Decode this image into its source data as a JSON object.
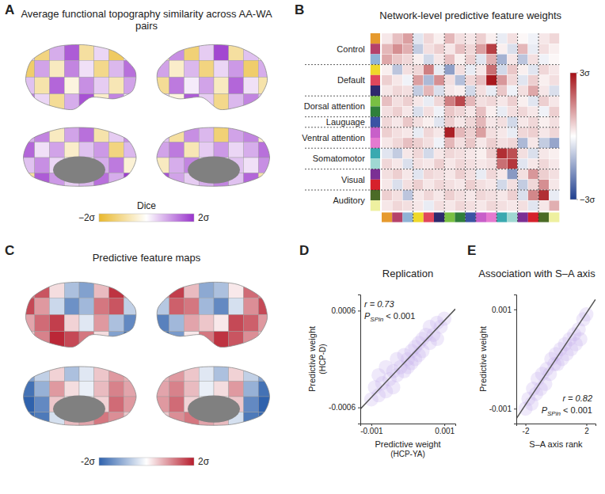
{
  "chart_data": [
    {
      "type": "brain_map",
      "panel": "A",
      "title": "Average functional topography similarity across AA-WA pairs",
      "colorbar": {
        "label": "Dice",
        "range": [
          -2,
          2
        ],
        "colors": [
          "#e9b82c",
          "#ffffff",
          "#9933cc"
        ],
        "ticks": [
          {
            "value": -2,
            "label": "−2σ"
          },
          {
            "value": 2,
            "label": "2σ"
          }
        ]
      },
      "views": [
        [
          [
            0.5,
            -1.2,
            0.8,
            1.6,
            -0.9,
            0.4,
            -1.5,
            0.3
          ],
          [
            -1.4,
            0.9,
            -0.6,
            1.2,
            0.3,
            -1.1,
            0.7,
            1.4
          ],
          [
            0.6,
            -0.8,
            1.5,
            -0.3,
            1.1,
            0.5,
            -0.7,
            0.9
          ],
          [
            1.3,
            0.4,
            -1.0,
            0.8,
            1.7,
            -0.5,
            1.2,
            0.2
          ]
        ],
        [
          [
            -0.7,
            1.1,
            -1.3,
            0.5,
            1.8,
            -0.9,
            0.6,
            -0.4
          ],
          [
            0.9,
            -0.5,
            0.7,
            -1.2,
            0.4,
            1.0,
            -1.4,
            0.8
          ],
          [
            -1.0,
            1.3,
            0.2,
            0.9,
            -0.6,
            1.5,
            0.3,
            -0.8
          ],
          [
            0.4,
            -0.3,
            1.6,
            0.5,
            -1.1,
            0.7,
            1.2,
            0.6
          ]
        ],
        [
          [
            0.8,
            1.2,
            -0.6,
            0.9,
            1.4,
            -0.8,
            0.5,
            1.1
          ],
          [
            1.5,
            0.3,
            0.9,
            -0.5,
            0.6,
            1.0,
            -1.2,
            0.7
          ],
          [
            0.6,
            1.1,
            0.4,
            0.0,
            0.0,
            0.8,
            1.3,
            -0.4
          ],
          [
            -0.9,
            1.6,
            1.0,
            0.5,
            0.7,
            1.4,
            0.8,
            1.9
          ]
        ],
        [
          [
            0.6,
            -0.9,
            1.1,
            0.7,
            -1.3,
            0.9,
            1.2,
            -0.5
          ],
          [
            0.9,
            1.3,
            -0.7,
            0.5,
            1.0,
            0.4,
            0.8,
            1.4
          ],
          [
            -0.6,
            0.8,
            1.2,
            0.0,
            0.0,
            0.6,
            0.3,
            1.1
          ],
          [
            1.7,
            0.9,
            0.5,
            0.8,
            1.2,
            0.6,
            1.5,
            -0.8
          ]
        ]
      ]
    },
    {
      "type": "heatmap",
      "panel": "B",
      "title": "Network-level predictive feature weights",
      "groups": [
        {
          "label": "Control",
          "size": 3
        },
        {
          "label": "Default",
          "size": 3
        },
        {
          "label": "Dorsal attention",
          "size": 2
        },
        {
          "label": "Lauguage",
          "size": 1
        },
        {
          "label": "Ventral attention",
          "size": 2
        },
        {
          "label": "Somatomotor",
          "size": 2
        },
        {
          "label": "Visual",
          "size": 2
        },
        {
          "label": "Auditory",
          "size": 2
        }
      ],
      "colors": [
        "#e69a2e",
        "#b5426a",
        "#8fb3d6",
        "#efd92a",
        "#e0475c",
        "#2e2a6d",
        "#79c043",
        "#2f7f3a",
        "#3a53a4",
        "#c85fc9",
        "#e57ad0",
        "#3aa9b0",
        "#9fd8d2",
        "#7b2f94",
        "#d6212b",
        "#4b6b26",
        "#eef0a0"
      ],
      "colorbar": {
        "range": [
          -3,
          3
        ],
        "colors": [
          "#1f3f8f",
          "#ffffff",
          "#a50f15"
        ],
        "ticks": [
          {
            "value": 3,
            "label": "3σ"
          },
          {
            "value": -3,
            "label": "−3σ"
          }
        ]
      },
      "cells": [
        [
          0.3,
          0.8,
          1.2,
          -0.4,
          0.5,
          0.2,
          0.9,
          0.4,
          0.3,
          0.6,
          0.2,
          -0.3,
          0.4,
          0.1,
          -0.2,
          0.3,
          0.5
        ],
        [
          0.9,
          1.4,
          1.0,
          -0.8,
          0.4,
          0.6,
          0.3,
          0.8,
          0.5,
          1.2,
          2.4,
          0.2,
          -0.5,
          0.9,
          -0.3,
          0.4,
          0.2
        ],
        [
          1.1,
          0.7,
          0.5,
          0.2,
          -0.6,
          0.3,
          0.8,
          0.2,
          0.6,
          -0.4,
          1.0,
          -1.2,
          0.3,
          -0.9,
          0.4,
          -0.2,
          0.1
        ],
        [
          0.2,
          -0.9,
          0.4,
          0.5,
          1.6,
          -0.3,
          -1.5,
          0.4,
          -0.3,
          0.3,
          1.8,
          -0.6,
          0.7,
          0.2,
          -0.4,
          0.5,
          0.3
        ],
        [
          0.6,
          0.3,
          -0.2,
          1.2,
          -1.1,
          1.4,
          0.4,
          -1.0,
          0.5,
          0.8,
          2.9,
          1.3,
          0.5,
          -0.4,
          0.6,
          0.2,
          0.4
        ],
        [
          0.3,
          0.5,
          0.4,
          -0.8,
          0.9,
          -0.5,
          0.3,
          0.2,
          -0.6,
          0.4,
          -0.3,
          0.7,
          -0.2,
          0.4,
          1.1,
          0.3,
          -0.5
        ],
        [
          0.8,
          0.4,
          0.6,
          0.3,
          -0.3,
          0.5,
          1.6,
          2.3,
          0.9,
          0.4,
          0.5,
          0.3,
          0.6,
          0.2,
          -0.4,
          0.6,
          0.3
        ],
        [
          0.4,
          0.6,
          0.3,
          -0.5,
          0.4,
          -0.2,
          0.7,
          0.5,
          0.3,
          0.8,
          0.2,
          -0.3,
          0.4,
          0.5,
          0.3,
          -0.2,
          0.6
        ],
        [
          0.5,
          0.3,
          0.7,
          0.4,
          0.2,
          -0.4,
          0.6,
          0.3,
          0.5,
          0.9,
          0.3,
          0.4,
          -0.6,
          0.3,
          0.5,
          0.2,
          0.4
        ],
        [
          0.6,
          0.4,
          0.3,
          -0.3,
          0.5,
          0.3,
          2.8,
          0.9,
          0.6,
          1.2,
          0.4,
          0.3,
          -0.3,
          0.5,
          0.6,
          0.3,
          0.5
        ],
        [
          0.3,
          0.5,
          0.8,
          0.6,
          0.4,
          -0.2,
          0.9,
          0.4,
          0.7,
          0.3,
          0.6,
          0.4,
          0.5,
          -1.1,
          0.3,
          -0.8,
          -1.4
        ],
        [
          -0.4,
          -0.8,
          0.3,
          0.5,
          -0.6,
          0.3,
          0.5,
          0.4,
          0.3,
          0.2,
          0.6,
          2.6,
          2.2,
          0.4,
          -0.5,
          0.3,
          0.2
        ],
        [
          0.5,
          0.3,
          -0.5,
          0.4,
          0.3,
          0.6,
          0.3,
          0.5,
          0.4,
          0.3,
          0.4,
          1.8,
          2.5,
          -0.4,
          0.3,
          0.5,
          0.3
        ],
        [
          0.4,
          0.6,
          0.3,
          -0.4,
          0.5,
          0.4,
          0.3,
          0.6,
          0.4,
          -0.3,
          0.5,
          0.3,
          -1.6,
          0.4,
          1.3,
          0.6,
          0.4
        ],
        [
          0.3,
          -0.5,
          0.4,
          0.6,
          0.3,
          0.5,
          0.4,
          0.3,
          0.6,
          0.4,
          0.3,
          -0.6,
          0.4,
          -0.8,
          0.5,
          1.4,
          0.3
        ],
        [
          0.6,
          0.4,
          -0.9,
          0.3,
          0.5,
          0.3,
          0.6,
          0.4,
          0.3,
          0.5,
          0.4,
          0.3,
          0.6,
          -0.5,
          1.5,
          2.6,
          -0.3
        ],
        [
          0.3,
          0.5,
          0.4,
          0.3,
          -0.3,
          0.4,
          0.3,
          0.5,
          0.4,
          0.3,
          0.5,
          0.4,
          0.3,
          0.4,
          -0.4,
          0.3,
          1.0
        ]
      ]
    },
    {
      "type": "brain_map",
      "panel": "C",
      "title": "Predictive feature maps",
      "colorbar": {
        "range": [
          -2,
          2
        ],
        "colors": [
          "#2f62ad",
          "#ffffff",
          "#b71c2c"
        ],
        "ticks": [
          {
            "value": -2,
            "label": "-2σ"
          },
          {
            "value": 2,
            "label": "2σ"
          }
        ]
      },
      "views": [
        [
          [
            1.2,
            1.5,
            0.3,
            -0.8,
            -1.2,
            0.6,
            1.8,
            1.0
          ],
          [
            1.6,
            0.9,
            -0.5,
            -1.4,
            -0.9,
            1.2,
            1.5,
            -0.6
          ],
          [
            0.8,
            1.3,
            1.7,
            0.4,
            -0.3,
            0.9,
            -0.8,
            -1.5
          ],
          [
            0.5,
            1.1,
            1.9,
            1.6,
            1.2,
            0.3,
            -1.2,
            -1.9
          ]
        ],
        [
          [
            1.0,
            1.7,
            0.6,
            -1.1,
            -0.8,
            0.2,
            1.3,
            1.1
          ],
          [
            -0.7,
            1.4,
            1.2,
            -0.9,
            -1.5,
            -0.4,
            1.0,
            1.6
          ],
          [
            -1.6,
            -0.9,
            0.8,
            0.5,
            0.2,
            1.6,
            1.4,
            0.9
          ],
          [
            -1.9,
            -1.3,
            0.2,
            1.2,
            1.8,
            1.5,
            1.0,
            0.6
          ]
        ],
        [
          [
            -1.2,
            -0.6,
            0.4,
            -0.8,
            -0.3,
            0.5,
            0.9,
            0.7
          ],
          [
            -1.8,
            -1.0,
            0.9,
            0.3,
            -0.2,
            0.6,
            1.1,
            0.8
          ],
          [
            -2.0,
            -1.5,
            0.5,
            0.0,
            0.0,
            0.4,
            1.3,
            0.9
          ],
          [
            -1.9,
            -1.7,
            -0.4,
            0.6,
            0.8,
            1.2,
            1.0,
            0.5
          ]
        ],
        [
          [
            0.7,
            0.9,
            0.5,
            -0.3,
            -0.8,
            0.4,
            -0.6,
            -1.2
          ],
          [
            0.8,
            1.1,
            0.6,
            -0.2,
            0.3,
            0.9,
            -1.0,
            -1.8
          ],
          [
            0.9,
            1.3,
            0.4,
            0.0,
            0.0,
            0.5,
            -1.5,
            -2.0
          ],
          [
            0.5,
            1.0,
            1.2,
            0.8,
            0.6,
            -0.4,
            -1.7,
            -1.9
          ]
        ]
      ]
    },
    {
      "type": "scatter",
      "panel": "D",
      "title": "Replication",
      "xlabel": [
        "Predictive weight",
        "(HCP-YA)"
      ],
      "ylabel": [
        "Predictive weight",
        "(HCP-D)"
      ],
      "xlim": [
        -0.0013,
        0.0013
      ],
      "ylim": [
        -0.0008,
        0.0008
      ],
      "xticks": [
        -0.001,
        0.001
      ],
      "yticks": [
        0.0006,
        -0.0006
      ],
      "color": "#c4b0ec",
      "marker": "circle",
      "x": [
        -0.001,
        -0.0009,
        -0.0008,
        -0.0008,
        -0.0007,
        -0.0006,
        -0.0006,
        -0.0005,
        -0.0004,
        -0.0004,
        -0.0003,
        -0.0003,
        -0.0002,
        -0.0001,
        -0.0001,
        0.0,
        0.0,
        0.0001,
        0.0001,
        0.0002,
        0.0002,
        0.0003,
        0.0003,
        0.0004,
        0.0004,
        0.0005,
        0.0006,
        0.0006,
        0.0007,
        0.0008,
        0.0008,
        0.0009,
        0.001
      ],
      "y": [
        -0.0005,
        -0.00035,
        -0.00045,
        -0.0002,
        -0.0003,
        -0.0004,
        -0.0001,
        -0.00025,
        -0.00015,
        -0.00035,
        0.0,
        -0.0002,
        -0.0001,
        5e-05,
        -0.00015,
        0.0,
        -0.0001,
        0.0001,
        -5e-05,
        0.00015,
        0.0,
        0.0002,
        5e-05,
        0.00025,
        0.0001,
        0.0003,
        0.0002,
        0.0004,
        0.0003,
        0.00045,
        0.00025,
        0.0004,
        0.0005
      ],
      "fit": {
        "x": [
          -0.0013,
          0.0013
        ],
        "y": [
          -0.00062,
          0.00062
        ]
      },
      "annotations": {
        "r": "r = 0.73",
        "p": [
          "P",
          "SPin",
          " < 0.001"
        ]
      }
    },
    {
      "type": "scatter",
      "panel": "E",
      "title": "Association with S–A axis",
      "xlabel": [
        "S–A axis rank"
      ],
      "ylabel": [
        "Predictive weight"
      ],
      "xlim": [
        -2.6,
        2.6
      ],
      "ylim": [
        -0.0013,
        0.0013
      ],
      "xticks": [
        -2,
        2
      ],
      "yticks": [
        0.001,
        -0.001
      ],
      "color": "#c4b0ec",
      "marker": "circle",
      "x": [
        -2.0,
        -1.8,
        -1.6,
        -1.5,
        -1.3,
        -1.2,
        -1.0,
        -0.9,
        -0.7,
        -0.6,
        -0.4,
        -0.3,
        -0.1,
        0.0,
        0.1,
        0.3,
        0.4,
        0.6,
        0.7,
        0.9,
        1.0,
        1.2,
        1.3,
        1.5,
        1.6,
        1.8,
        2.0
      ],
      "y": [
        -0.001,
        -0.0008,
        -0.0009,
        -0.0006,
        -0.0007,
        -0.0004,
        -0.0006,
        -0.0003,
        -0.0005,
        -0.0002,
        -0.0003,
        0.0,
        -0.0001,
        0.0001,
        -0.0001,
        0.0002,
        0.0,
        0.0003,
        0.0001,
        0.0004,
        0.0002,
        0.0005,
        0.0003,
        0.0006,
        0.0004,
        0.0008,
        0.0009
      ],
      "fit": {
        "x": [
          -2.6,
          2.6
        ],
        "y": [
          -0.0012,
          0.0012
        ]
      },
      "annotations": {
        "r": "r = 0.82",
        "p": [
          "P",
          "SPin",
          " < 0.001"
        ]
      }
    }
  ]
}
